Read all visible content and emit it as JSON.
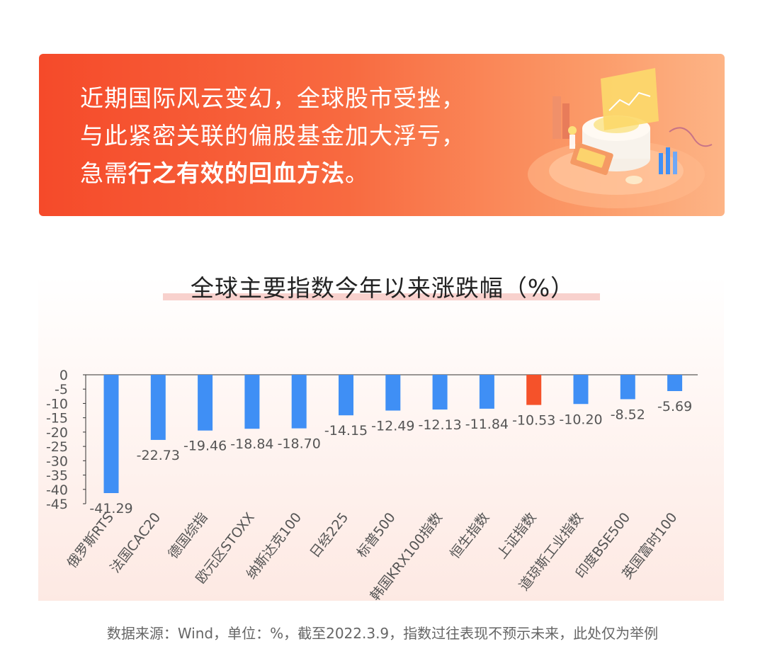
{
  "banner": {
    "line1": "近期国际风云变幻，全球股市受挫，",
    "line2": "与此紧密关联的偏股基金加大浮亏，",
    "line3_prefix": "急需",
    "line3_bold": "行之有效的回血方法",
    "line3_suffix": "。"
  },
  "footer": "数据来源：Wind，单位：%，截至2022.3.9，指数过往表现不预示未来，此处仅为举例",
  "colors": {
    "bar": "#3f8ff5",
    "highlight": "#f5522a",
    "banner_start": "#f54a2a",
    "banner_end": "#fdb486"
  },
  "chart_data": {
    "type": "bar",
    "title": "全球主要指数今年以来涨跌幅（%）",
    "categories": [
      "俄罗斯RTS",
      "法国CAC20",
      "德国综指",
      "欧元区STOXX",
      "纳斯达克100",
      "日经225",
      "标普500",
      "韩国KRX100指数",
      "恒生指数",
      "上证指数",
      "道琼斯工业指数",
      "印度BSE500",
      "英国富时100"
    ],
    "values": [
      -41.29,
      -22.73,
      -19.46,
      -18.84,
      -18.7,
      -14.15,
      -12.49,
      -12.13,
      -11.84,
      -10.53,
      -10.2,
      -8.52,
      -5.69
    ],
    "value_labels": [
      "-41.29",
      "-22.73",
      "-19.46",
      "-18.84",
      "-18.70",
      "-14.15",
      "-12.49",
      "-12.13",
      "-11.84",
      "-10.53",
      "-10.20",
      "-8.52",
      "-5.69"
    ],
    "highlight_category": "上证指数",
    "yticks": [
      "0",
      "-5",
      "-10",
      "-15",
      "-20",
      "-25",
      "-30",
      "-35",
      "-40",
      "-45"
    ],
    "ylim": [
      -45,
      0
    ],
    "grid": false,
    "legend": "none"
  }
}
